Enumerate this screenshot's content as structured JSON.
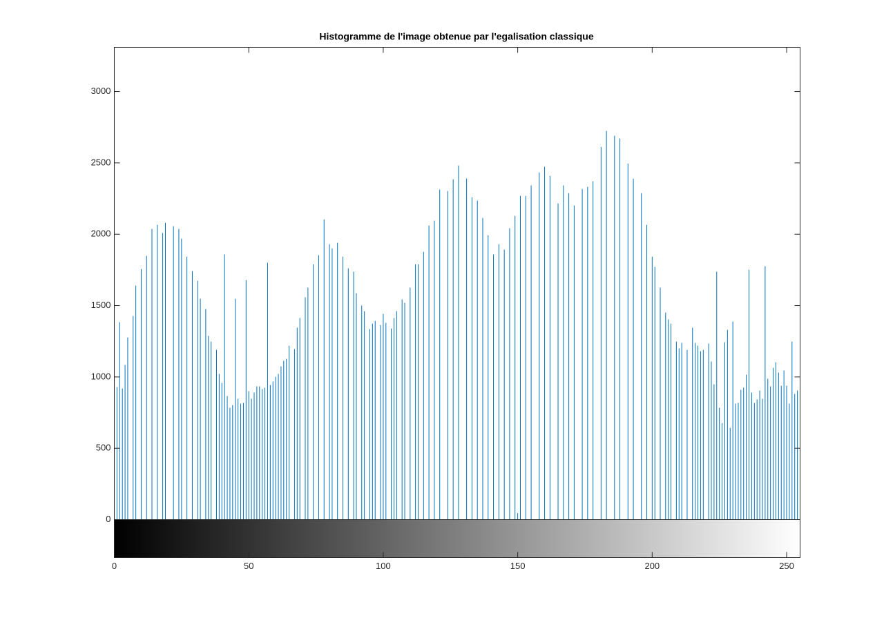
{
  "chart_data": {
    "type": "stem",
    "title": "Histogramme de l'image obtenue par l'egalisation classique",
    "color": "#0072bd",
    "xlim": [
      0,
      255
    ],
    "xticks": [
      0,
      50,
      100,
      150,
      200,
      250
    ],
    "ylim": [
      0,
      3310
    ],
    "yticks": [
      0,
      500,
      1000,
      1500,
      2000,
      2500,
      3000
    ],
    "x": [
      1,
      2,
      3,
      4,
      5,
      7,
      8,
      10,
      12,
      14,
      16,
      18,
      19,
      22,
      24,
      25,
      27,
      29,
      31,
      32,
      34,
      35,
      36,
      38,
      39,
      40,
      41,
      42,
      43,
      44,
      45,
      46,
      47,
      48,
      49,
      50,
      51,
      52,
      53,
      54,
      55,
      56,
      57,
      58,
      59,
      60,
      61,
      62,
      63,
      64,
      65,
      67,
      68,
      69,
      71,
      72,
      74,
      76,
      78,
      80,
      81,
      83,
      85,
      87,
      89,
      90,
      92,
      93,
      95,
      96,
      97,
      99,
      100,
      101,
      103,
      104,
      105,
      107,
      108,
      110,
      112,
      113,
      115,
      117,
      119,
      121,
      124,
      126,
      128,
      131,
      133,
      135,
      137,
      139,
      141,
      143,
      145,
      147,
      149,
      150,
      151,
      153,
      155,
      158,
      160,
      162,
      165,
      167,
      169,
      171,
      174,
      176,
      178,
      181,
      183,
      186,
      188,
      191,
      193,
      196,
      198,
      200,
      201,
      203,
      205,
      206,
      207,
      209,
      210,
      211,
      213,
      215,
      216,
      217,
      218,
      219,
      221,
      222,
      223,
      224,
      225,
      226,
      227,
      228,
      229,
      230,
      231,
      232,
      233,
      234,
      235,
      236,
      237,
      238,
      239,
      240,
      241,
      242,
      243,
      244,
      245,
      246,
      247,
      248,
      249,
      250,
      251,
      252,
      253,
      254,
      255
    ],
    "values": [
      929,
      1384,
      919,
      1084,
      1277,
      1427,
      1640,
      1756,
      1848,
      2037,
      2066,
      2008,
      2080,
      2056,
      2037,
      1969,
      1843,
      1742,
      1674,
      1548,
      1476,
      1287,
      1248,
      1190,
      1021,
      958,
      1858,
      866,
      784,
      803,
      1548,
      847,
      813,
      818,
      1679,
      900,
      847,
      890,
      934,
      934,
      915,
      924,
      1800,
      943,
      968,
      1001,
      1021,
      1074,
      1113,
      1127,
      1219,
      1195,
      1345,
      1413,
      1558,
      1626,
      1790,
      1853,
      2104,
      1930,
      1901,
      1940,
      1843,
      1761,
      1737,
      1587,
      1500,
      1461,
      1335,
      1374,
      1393,
      1364,
      1442,
      1379,
      1340,
      1413,
      1461,
      1543,
      1519,
      1626,
      1790,
      1790,
      1877,
      2061,
      2095,
      2313,
      2303,
      2385,
      2482,
      2390,
      2259,
      2235,
      2114,
      1993,
      1858,
      1930,
      1892,
      2042,
      2129,
      45,
      2269,
      2269,
      2342,
      2433,
      2472,
      2409,
      2216,
      2342,
      2288,
      2201,
      2317,
      2332,
      2371,
      2612,
      2724,
      2690,
      2671,
      2496,
      2390,
      2288,
      2066,
      1843,
      1771,
      1626,
      1451,
      1403,
      1374,
      1248,
      1200,
      1239,
      1190,
      1345,
      1239,
      1219,
      1180,
      1190,
      1234,
      1108,
      948,
      1737,
      784,
      677,
      1243,
      1330,
      643,
      1388,
      813,
      818,
      910,
      924,
      1016,
      1751,
      890,
      818,
      842,
      905,
      847,
      1776,
      987,
      934,
      1064,
      1103,
      1031,
      939,
      1045,
      939,
      813,
      1248,
      881,
      905,
      1001
    ]
  }
}
